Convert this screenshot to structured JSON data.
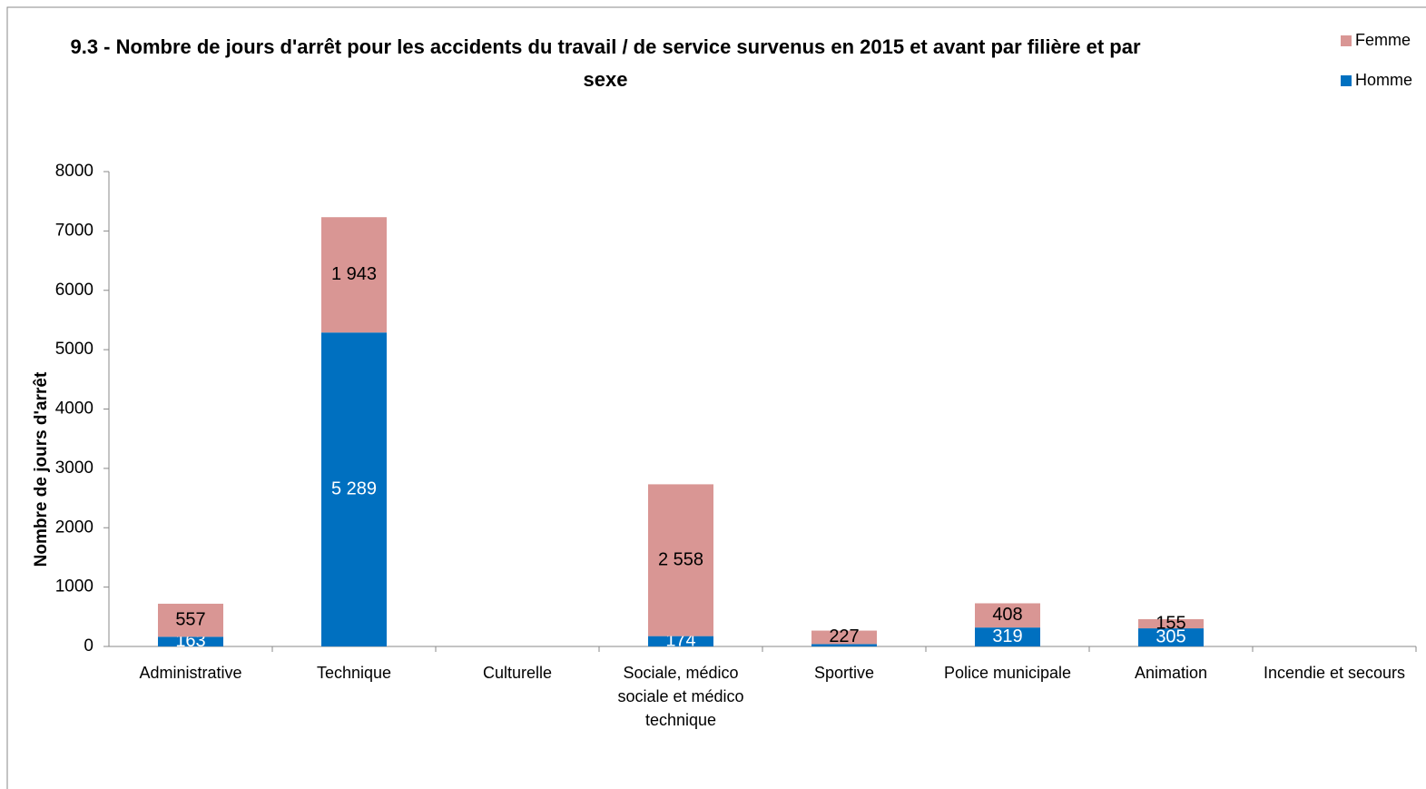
{
  "chart_data": {
    "type": "stacked_bar",
    "title": "9.3 - Nombre de jours d'arrêt pour les accidents du travail / de service survenus en 2015 et avant par filière et par sexe",
    "y_label": "Nombre de jours d'arrêt",
    "categories": [
      "Administrative",
      "Technique",
      "Culturelle",
      "Sociale, médico sociale et médico technique",
      "Sportive",
      "Police municipale",
      "Animation",
      "Incendie et secours"
    ],
    "series": [
      {
        "name": "Homme",
        "color": "#0070c0",
        "label_color": "#ffffff",
        "values": [
          163,
          5289,
          null,
          174,
          40,
          319,
          305,
          null
        ],
        "value_labels": [
          "163",
          "5 289",
          null,
          "174",
          null,
          "319",
          "305",
          null
        ]
      },
      {
        "name": "Femme",
        "color": "#d99694",
        "label_color": "#000000",
        "values": [
          557,
          1943,
          null,
          2558,
          227,
          408,
          155,
          null
        ],
        "value_labels": [
          "557",
          "1 943",
          null,
          "2 558",
          "227",
          "408",
          "155",
          null
        ]
      }
    ],
    "ylim": [
      0,
      8000
    ],
    "yticks": [
      0,
      1000,
      2000,
      3000,
      4000,
      5000,
      6000,
      7000,
      8000
    ],
    "grid": false,
    "legend": "top-right"
  }
}
